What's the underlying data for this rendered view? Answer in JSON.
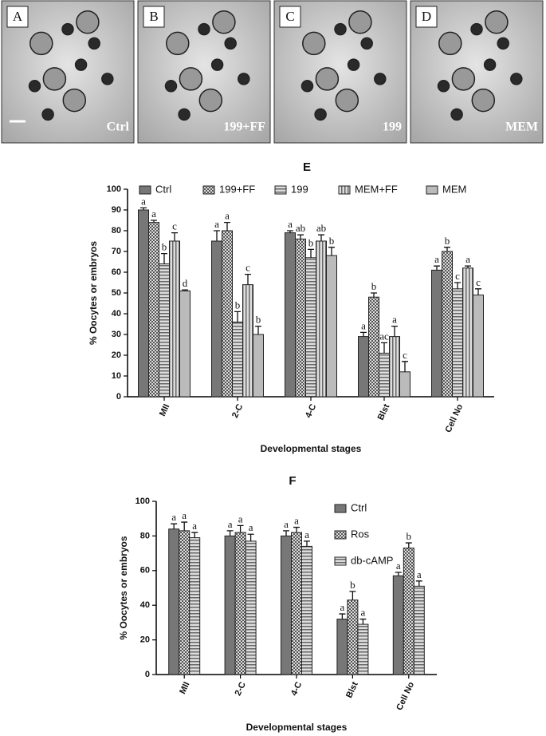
{
  "photos": [
    {
      "label": "A",
      "caption": "Ctrl"
    },
    {
      "label": "B",
      "caption": "199+FF"
    },
    {
      "label": "C",
      "caption": "199"
    },
    {
      "label": "D",
      "caption": "MEM"
    }
  ],
  "chart_data": [
    {
      "type": "bar",
      "title": "E",
      "categories": [
        "MII",
        "2-C",
        "4-C",
        "Blst",
        "Cell No"
      ],
      "xlabel": "Developmental stages",
      "ylabel": "% Oocytes or embryos",
      "ylim": [
        0,
        100
      ],
      "yticks": [
        0,
        10,
        20,
        30,
        40,
        50,
        60,
        70,
        80,
        90,
        100
      ],
      "legend": "top",
      "series": [
        {
          "name": "Ctrl",
          "color": "#777777",
          "hatch": "solid",
          "values": [
            90,
            75,
            79,
            29,
            61
          ],
          "errors": [
            1,
            5,
            1,
            2,
            2
          ],
          "letters": [
            "a",
            "a",
            "a",
            "a",
            "a"
          ]
        },
        {
          "name": "199+FF",
          "color": "#555555",
          "hatch": "checker",
          "values": [
            84,
            80,
            76,
            48,
            70
          ],
          "errors": [
            1,
            4,
            2,
            2,
            2
          ],
          "letters": [
            "a",
            "a",
            "ab",
            "b",
            "b"
          ]
        },
        {
          "name": "199",
          "color": "#666666",
          "hatch": "horizontal",
          "values": [
            64,
            36,
            67,
            21,
            52
          ],
          "errors": [
            5,
            5,
            4,
            5,
            3
          ],
          "letters": [
            "b",
            "b",
            "b",
            "ac",
            "c"
          ]
        },
        {
          "name": "MEM+FF",
          "color": "#666666",
          "hatch": "vertical",
          "values": [
            75,
            54,
            75,
            29,
            62
          ],
          "errors": [
            4,
            5,
            3,
            5,
            1
          ],
          "letters": [
            "c",
            "c",
            "ab",
            "a",
            "a"
          ]
        },
        {
          "name": "MEM",
          "color": "#bbbbbb",
          "hatch": "solid",
          "values": [
            51,
            30,
            68,
            12,
            49
          ],
          "errors": [
            0.5,
            4,
            4,
            5,
            3
          ],
          "letters": [
            "d",
            "b",
            "b",
            "c",
            "c"
          ]
        }
      ]
    },
    {
      "type": "bar",
      "title": "F",
      "categories": [
        "MII",
        "2-C",
        "4-C",
        "Blst",
        "Cell No"
      ],
      "xlabel": "Developmental stages",
      "ylabel": "% Oocytes or embryos",
      "ylim": [
        0,
        100
      ],
      "yticks": [
        0,
        20,
        40,
        60,
        80,
        100
      ],
      "legend": "right",
      "series": [
        {
          "name": "Ctrl",
          "color": "#777777",
          "hatch": "solid",
          "values": [
            84,
            80,
            80,
            32,
            57
          ],
          "errors": [
            3,
            3,
            3,
            3,
            2
          ],
          "letters": [
            "a",
            "a",
            "a",
            "a",
            "a"
          ]
        },
        {
          "name": "Ros",
          "color": "#555555",
          "hatch": "checker",
          "values": [
            83,
            82,
            82,
            43,
            73
          ],
          "errors": [
            5,
            4,
            3,
            5,
            3
          ],
          "letters": [
            "a",
            "a",
            "a",
            "b",
            "b"
          ]
        },
        {
          "name": "db-cAMP",
          "color": "#666666",
          "hatch": "horizontal",
          "values": [
            79,
            77,
            74,
            29,
            51
          ],
          "errors": [
            3,
            4,
            3,
            3,
            3
          ],
          "letters": [
            "a",
            "a",
            "a",
            "a",
            "a"
          ]
        }
      ]
    }
  ]
}
